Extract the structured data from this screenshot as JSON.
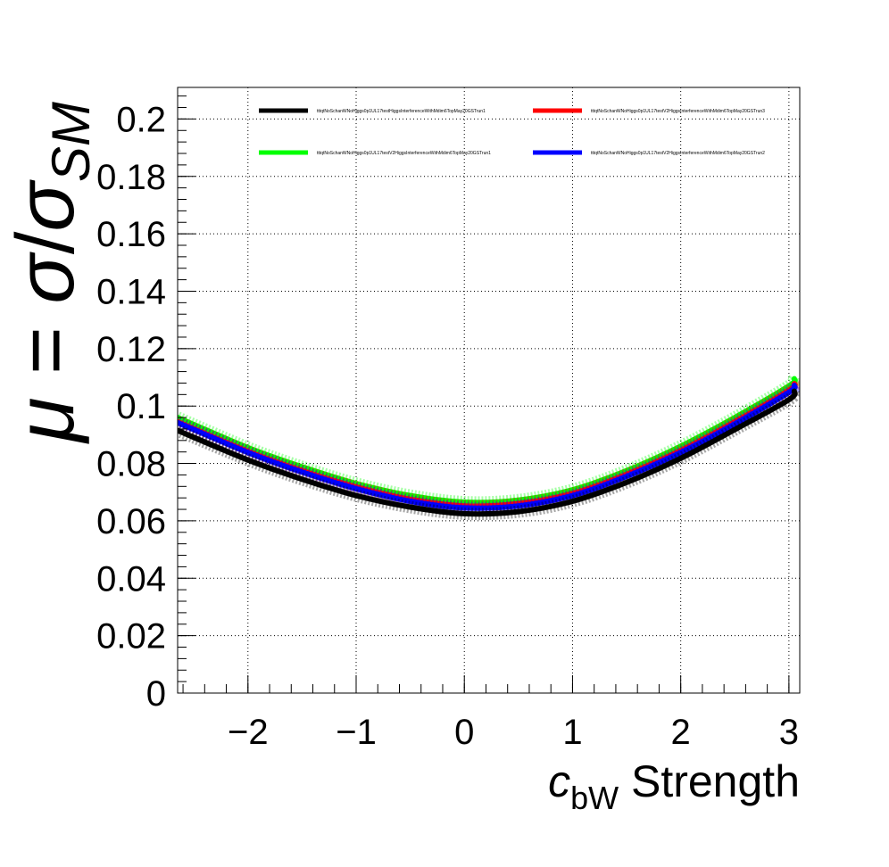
{
  "chart_data": {
    "type": "line",
    "xlabel": {
      "var": "c",
      "sub": "bW",
      "rest": " Strength"
    },
    "ylabel": {
      "mu": "μ",
      "eq": " = ",
      "sigma": "σ",
      "slash": "/",
      "sigma2": "σ",
      "sub": "SM"
    },
    "xlim": [
      -2.65,
      3.1
    ],
    "ylim": [
      0,
      0.211
    ],
    "grid": true,
    "legend_placement": "top",
    "x_ticks": [
      {
        "value": -2,
        "label": "−2"
      },
      {
        "value": -1,
        "label": "−1"
      },
      {
        "value": 0,
        "label": "0"
      },
      {
        "value": 1,
        "label": "1"
      },
      {
        "value": 2,
        "label": "2"
      },
      {
        "value": 3,
        "label": "3"
      }
    ],
    "y_ticks": [
      {
        "value": 0,
        "label": "0"
      },
      {
        "value": 0.02,
        "label": "0.02"
      },
      {
        "value": 0.04,
        "label": "0.04"
      },
      {
        "value": 0.06,
        "label": "0.06"
      },
      {
        "value": 0.08,
        "label": "0.08"
      },
      {
        "value": 0.1,
        "label": "0.1"
      },
      {
        "value": 0.12,
        "label": "0.12"
      },
      {
        "value": 0.14,
        "label": "0.14"
      },
      {
        "value": 0.16,
        "label": "0.16"
      },
      {
        "value": 0.18,
        "label": "0.18"
      },
      {
        "value": 0.2,
        "label": "0.2"
      }
    ],
    "x": [
      -2.65,
      -2,
      -1.5,
      -1,
      -0.5,
      0,
      0.5,
      1,
      1.5,
      2,
      2.5,
      3,
      3.05
    ],
    "series": [
      {
        "name": "tttqtNoSchanWNoHiggs0p1UL17testHiggsInterferenceWithMdim6TopMay20GSTrun1",
        "color": "#000000",
        "values": [
          0.0915,
          0.0812,
          0.0745,
          0.0688,
          0.0648,
          0.0625,
          0.0632,
          0.0668,
          0.0734,
          0.0818,
          0.0918,
          0.1022,
          0.1052
        ]
      },
      {
        "name": "tttqtNoSchanWNoHiggs0p1UL17testV2HiggsInterferenceWithMdim6TopMay20GSTrun3",
        "color": "#ff0000",
        "values": [
          0.0945,
          0.0842,
          0.0775,
          0.0718,
          0.0675,
          0.0652,
          0.066,
          0.0695,
          0.0762,
          0.0845,
          0.0945,
          0.1055,
          0.1078
        ]
      },
      {
        "name": "tttqtNoSchanWNoHiggs0p1UL17testV2HiggsInterferenceWithMdim6TopMay20GSTrun1",
        "color": "#00ff00",
        "values": [
          0.096,
          0.0855,
          0.0788,
          0.073,
          0.0688,
          0.0665,
          0.0672,
          0.0708,
          0.0775,
          0.086,
          0.096,
          0.107,
          0.1095
        ]
      },
      {
        "name": "tttqtNoSchanWNoHiggs0p1UL17testV2HiggsInterferenceWithMdim6TopMay20GSTrun2",
        "color": "#0000ff",
        "values": [
          0.0942,
          0.0838,
          0.077,
          0.0712,
          0.0668,
          0.0645,
          0.0652,
          0.0688,
          0.0755,
          0.0838,
          0.0938,
          0.1048,
          0.1072
        ]
      }
    ]
  }
}
